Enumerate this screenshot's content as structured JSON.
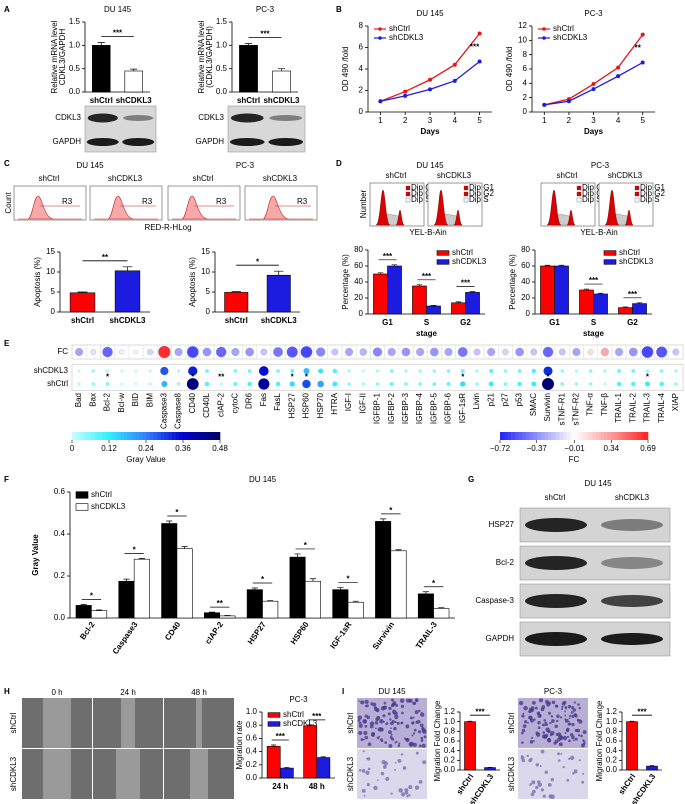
{
  "panel_labels": [
    "A",
    "B",
    "C",
    "D",
    "E",
    "F",
    "G",
    "H",
    "I"
  ],
  "blot_a": [
    {
      "rows": [
        "CDKL3",
        "GAPDH"
      ]
    },
    {
      "rows": [
        "CDKL3",
        "GAPDH"
      ]
    }
  ],
  "flow_c": {
    "titles": [
      "DU 145",
      "PC-3"
    ],
    "groups": [
      "shCtrl",
      "shCDKL3"
    ],
    "gate": "R3",
    "ylabel": "Count",
    "xlabel": "RED-R-HLog"
  },
  "cycle_d": {
    "titles": [
      "DU 145",
      "PC-3"
    ],
    "groups": [
      "shCtrl",
      "shCDKL3"
    ],
    "legend": [
      "Dip G1",
      "Dip G2",
      "Dip S"
    ],
    "ylabel": "Number",
    "xlabel": "YEL-B-Ain"
  },
  "blot_g": {
    "title": "DU 145",
    "columns": [
      "shCtrl",
      "shCDKL3"
    ],
    "rows": [
      "HSP27",
      "Bcl-2",
      "Caspase-3",
      "GAPDH"
    ]
  },
  "scratch_h": {
    "columns": [
      "0 h",
      "24 h",
      "48 h"
    ],
    "rows": [
      "shCtrl",
      "shCDKL3"
    ]
  },
  "transwell_i": {
    "titles": [
      "DU 145",
      "PC-3"
    ],
    "rows": [
      "shCtrl",
      "shCDKL3"
    ]
  },
  "chart_data": [
    {
      "type": "bar",
      "title": "DU 145",
      "ylabel": [
        "Relative mRNA level",
        "CDKL3/GAPDH"
      ],
      "categories": [
        "shCtrl",
        "shCDKL3"
      ],
      "values": [
        1.0,
        0.45
      ],
      "errors": [
        0.06,
        0.04
      ],
      "colors": [
        "#000000",
        "#ffffff"
      ],
      "ylim": [
        0,
        1.5
      ],
      "yticks": [
        {
          "value": 0,
          "label": "0.0"
        },
        0.5,
        {
          "value": 1,
          "label": "1.0"
        },
        1.5
      ],
      "annotations": [
        "***"
      ]
    },
    {
      "type": "bar",
      "title": "PC-3",
      "ylabel": [
        "Relative mRNA level",
        "(CDKL3/GAPDH)"
      ],
      "categories": [
        "shCtrl",
        "shCDKL3"
      ],
      "values": [
        1.0,
        0.45
      ],
      "errors": [
        0.04,
        0.05
      ],
      "colors": [
        "#000000",
        "#ffffff"
      ],
      "ylim": [
        0,
        1.5
      ],
      "yticks": [
        {
          "value": 0,
          "label": "0.0"
        },
        0.5,
        {
          "value": 1,
          "label": "1.0"
        },
        1.5
      ],
      "annotations": [
        "***"
      ]
    },
    {
      "type": "line",
      "title": "DU 145",
      "xlabel": "Days",
      "ylabel": "OD 490 /fold",
      "x": [
        1,
        2,
        3,
        4,
        5
      ],
      "xlim": [
        0.5,
        5.5
      ],
      "xticks": [
        1,
        2,
        3,
        4,
        5
      ],
      "ylim": [
        0,
        8
      ],
      "yticks": [
        0,
        2,
        4,
        6,
        8
      ],
      "series": [
        {
          "name": "shCtrl",
          "color": "#e8141c",
          "values": [
            1,
            1.9,
            3,
            4.4,
            7.3
          ]
        },
        {
          "name": "shCDKL3",
          "color": "#1c1ce0",
          "values": [
            1,
            1.5,
            2.1,
            2.9,
            4.7
          ]
        }
      ],
      "legend": "upper left",
      "annotations": [
        "***"
      ]
    },
    {
      "type": "line",
      "title": "PC-3",
      "xlabel": "Days",
      "ylabel": "OD 490 /fold",
      "x": [
        1,
        2,
        3,
        4,
        5
      ],
      "xlim": [
        0.5,
        5.5
      ],
      "xticks": [
        1,
        2,
        3,
        4,
        5
      ],
      "ylim": [
        0,
        12
      ],
      "yticks": [
        0,
        2,
        4,
        6,
        8,
        10,
        12
      ],
      "series": [
        {
          "name": "shCtrl",
          "color": "#e8141c",
          "values": [
            1,
            1.8,
            3.9,
            6.2,
            10.8
          ]
        },
        {
          "name": "shCDKL3",
          "color": "#1c1ce0",
          "values": [
            1,
            1.5,
            3.2,
            5,
            6.9
          ]
        }
      ],
      "legend": "upper left",
      "annotations": [
        "**"
      ]
    },
    {
      "type": "bar",
      "ylabel": "Apoptosis (%)",
      "categories": [
        "shCtrl",
        "shCDKL3"
      ],
      "values": [
        4.8,
        10.3
      ],
      "errors": [
        0.2,
        1.0
      ],
      "colors": [
        "#ff0000",
        "#1c1ce0"
      ],
      "ylim": [
        0,
        15
      ],
      "yticks": [
        0,
        5,
        10,
        15
      ],
      "annotations": [
        "**"
      ]
    },
    {
      "type": "bar",
      "ylabel": "Apoptosis (%)",
      "categories": [
        "shCtrl",
        "shCDKL3"
      ],
      "values": [
        4.9,
        9.2
      ],
      "errors": [
        0.2,
        1.0
      ],
      "colors": [
        "#ff0000",
        "#1c1ce0"
      ],
      "ylim": [
        0,
        15
      ],
      "yticks": [
        0,
        5,
        10,
        15
      ],
      "annotations": [
        "*"
      ]
    },
    {
      "type": "bar",
      "ylabel": "Percentage (%)",
      "xlabel": "stage",
      "categories": [
        "G1",
        "S",
        "G2"
      ],
      "series": [
        {
          "name": "shCtrl",
          "color": "#ff0000",
          "values": [
            50,
            35,
            14
          ],
          "errors": [
            1.5,
            1.5,
            1.2
          ]
        },
        {
          "name": "shCDKL3",
          "color": "#1c1ce0",
          "values": [
            60,
            10,
            27
          ],
          "errors": [
            1.5,
            0.8,
            1.0
          ]
        }
      ],
      "ylim": [
        0,
        80
      ],
      "yticks": [
        0,
        20,
        40,
        60,
        80
      ],
      "legend": "upper right",
      "annotations": [
        "***",
        "***",
        "***"
      ]
    },
    {
      "type": "bar",
      "ylabel": "Percentage (%)",
      "xlabel": "stage",
      "categories": [
        "G1",
        "S",
        "G2"
      ],
      "series": [
        {
          "name": "shCtrl",
          "color": "#ff0000",
          "values": [
            60,
            30,
            8
          ],
          "errors": [
            1.0,
            1.2,
            0.8
          ]
        },
        {
          "name": "shCDKL3",
          "color": "#1c1ce0",
          "values": [
            60,
            25,
            13
          ],
          "errors": [
            1.0,
            1.0,
            1.0
          ]
        }
      ],
      "ylim": [
        0,
        80
      ],
      "yticks": [
        0,
        20,
        40,
        60,
        80
      ],
      "legend": "upper right",
      "annotations": [
        null,
        "***",
        "***"
      ]
    },
    {
      "type": "heatmap",
      "categories": [
        "Bad",
        "Bax",
        "Bcl-2",
        "Bcl-w",
        "BID",
        "BIM",
        "Caspase3",
        "Caspase8",
        "CD40",
        "CD40L",
        "cIAP-2",
        "cytoC",
        "DR6",
        "Fas",
        "FasL",
        "HSP27",
        "HSP60",
        "HSP70",
        "HTRA",
        "IGF-I",
        "IGF-II",
        "IGFBP-1",
        "IGFBP-2",
        "IGFBP-3",
        "IGFBP-4",
        "IGFBP-5",
        "IGFBP-6",
        "IGF-1sR",
        "Livin",
        "p21",
        "p27",
        "p53",
        "SMAC",
        "Survivin",
        "sTNF-R1",
        "sTNF-R2",
        "TNF-α",
        "TNF-β",
        "TRAIL-1",
        "TRAIL-2",
        "TRAIL-3",
        "TRAIL-4",
        "XIAP"
      ],
      "fc_label": "FC",
      "fc": [
        -0.3,
        -0.1,
        -0.5,
        -0.05,
        0,
        -0.15,
        0.65,
        -0.3,
        -0.6,
        -0.35,
        -0.5,
        -0.3,
        -0.35,
        -0.2,
        -0.45,
        -0.55,
        -0.6,
        -0.4,
        -0.2,
        -0.3,
        -0.25,
        -0.4,
        -0.3,
        -0.35,
        -0.3,
        -0.35,
        -0.3,
        -0.45,
        -0.2,
        -0.3,
        -0.15,
        -0.35,
        -0.2,
        -0.5,
        -0.2,
        -0.3,
        0.1,
        0.3,
        -0.3,
        -0.35,
        -0.6,
        -0.55,
        -0.2
      ],
      "series": [
        {
          "name": "shCDKL3",
          "values": [
            0.02,
            0.045,
            0.035,
            0.019,
            0.02,
            0.026,
            0.28,
            0.035,
            0.33,
            0.07,
            0.01,
            0.06,
            0.07,
            0.35,
            0.065,
            0.08,
            0.175,
            0.13,
            0.1,
            0.037,
            0.031,
            0.034,
            0.059,
            0.042,
            0.044,
            0.049,
            0.059,
            0.075,
            0.041,
            0.089,
            0.052,
            0.07,
            0.098,
            0.32,
            0.049,
            0.037,
            0.055,
            0.04,
            0.074,
            0.07,
            0.045,
            0.058,
            0.041
          ]
        },
        {
          "name": "shCtrl",
          "values": [
            0.03,
            0.05,
            0.06,
            0.02,
            0.02,
            0.03,
            0.18,
            0.05,
            0.45,
            0.1,
            0.03,
            0.08,
            0.1,
            0.42,
            0.1,
            0.14,
            0.29,
            0.2,
            0.12,
            0.05,
            0.04,
            0.05,
            0.08,
            0.06,
            0.06,
            0.07,
            0.08,
            0.14,
            0.05,
            0.12,
            0.06,
            0.1,
            0.12,
            0.46,
            0.06,
            0.05,
            0.05,
            0.03,
            0.1,
            0.1,
            0.12,
            0.1,
            0.05
          ]
        }
      ],
      "annotations": [
        null,
        null,
        "*",
        null,
        null,
        null,
        null,
        null,
        "*",
        null,
        "**",
        null,
        null,
        null,
        null,
        "*",
        "*",
        null,
        null,
        null,
        null,
        null,
        null,
        null,
        null,
        null,
        null,
        "*",
        null,
        null,
        null,
        null,
        null,
        "*",
        null,
        null,
        null,
        null,
        null,
        null,
        "*",
        null,
        null
      ],
      "colorbars": [
        {
          "label": "Gray Value",
          "lim": [
            0,
            0.48
          ],
          "ticks": [
            0,
            0.12,
            0.24,
            0.36,
            0.48
          ],
          "colors": [
            "#c8ffff",
            "#30f0ff",
            "#3080ff",
            "#0000d0",
            "#000060"
          ]
        },
        {
          "label": "FC",
          "lim": [
            -0.72,
            0.69
          ],
          "ticks": [
            {
              "value": -0.72,
              "label": "−0.72"
            },
            {
              "value": -0.37,
              "label": "−0.37"
            },
            {
              "value": -0.01,
              "label": "−0.01"
            },
            0.34,
            0.69
          ],
          "colors": [
            "#2020ff",
            "#9090ff",
            "#ffffff",
            "#ff9a9a",
            "#ff2020"
          ]
        }
      ]
    },
    {
      "type": "bar",
      "title": "DU 145",
      "ylabel": "Gray Value",
      "categories": [
        "Bcl-2",
        "Caspase3",
        "CD40",
        "cIAP-2",
        "HSP27",
        "HSP60",
        "IGF-1sR",
        "Survivin",
        "TRAIL-3"
      ],
      "series": [
        {
          "name": "shCtrl",
          "color": "#000000",
          "values": [
            0.06,
            0.175,
            0.45,
            0.025,
            0.135,
            0.29,
            0.135,
            0.46,
            0.115
          ],
          "errors": [
            0.005,
            0.01,
            0.012,
            0.003,
            0.008,
            0.015,
            0.01,
            0.012,
            0.01
          ]
        },
        {
          "name": "shCDKL3",
          "color": "#ffffff",
          "values": [
            0.035,
            0.28,
            0.33,
            0.01,
            0.08,
            0.175,
            0.075,
            0.32,
            0.045
          ],
          "errors": [
            0.003,
            0.004,
            0.01,
            0.002,
            0.003,
            0.012,
            0.005,
            0.005,
            0.004
          ]
        }
      ],
      "ylim": [
        0,
        0.6
      ],
      "yticks": [
        {
          "value": 0,
          "label": "0.0"
        },
        0.2,
        0.4,
        0.6
      ],
      "legend": "upper left",
      "rotate_xlabels": true,
      "annotations": [
        "*",
        "*",
        "*",
        "**",
        "*",
        "*",
        "*",
        "*",
        "*"
      ]
    },
    {
      "type": "bar",
      "title": "PC-3",
      "ylabel": "Migration rate",
      "categories": [
        "24 h",
        "48 h"
      ],
      "series": [
        {
          "name": "shCtrl",
          "color": "#ff0000",
          "values": [
            0.48,
            0.79
          ],
          "errors": [
            0.02,
            0.015
          ]
        },
        {
          "name": "shCDKL3",
          "color": "#1c1ce0",
          "values": [
            0.15,
            0.31
          ],
          "errors": [
            0.01,
            0.01
          ]
        }
      ],
      "ylim": [
        0,
        1
      ],
      "yticks": [
        {
          "value": 0,
          "label": "0.0"
        },
        0.2,
        0.4,
        0.6,
        0.8,
        {
          "value": 1,
          "label": "1.0"
        }
      ],
      "legend": "upper left",
      "annotations": [
        "***",
        "***"
      ]
    },
    {
      "type": "bar",
      "ylabel": "Migration Fold Change",
      "categories": [
        "shCtrl",
        "shCDKL3"
      ],
      "values": [
        1.0,
        0.05
      ],
      "errors": [
        0.01,
        0.005
      ],
      "colors": [
        "#ff0000",
        "#1c1ce0"
      ],
      "ylim": [
        0,
        1.2
      ],
      "yticks": [
        {
          "value": 0,
          "label": "0.0"
        },
        0.2,
        0.4,
        0.6,
        0.8,
        {
          "value": 1,
          "label": "1.0"
        },
        1.2
      ],
      "rotate_xlabels": true,
      "annotations": [
        "***"
      ]
    },
    {
      "type": "bar",
      "ylabel": "Migration Fold Change",
      "categories": [
        "shCtrl",
        "shCDKL3"
      ],
      "values": [
        1.0,
        0.08
      ],
      "errors": [
        0.01,
        0.01
      ],
      "colors": [
        "#ff0000",
        "#1c1ce0"
      ],
      "ylim": [
        0,
        1.2
      ],
      "yticks": [
        {
          "value": 0,
          "label": "0.0"
        },
        0.2,
        0.4,
        0.6,
        0.8,
        {
          "value": 1,
          "label": "1.0"
        },
        1.2
      ],
      "rotate_xlabels": true,
      "annotations": [
        "***"
      ]
    }
  ]
}
